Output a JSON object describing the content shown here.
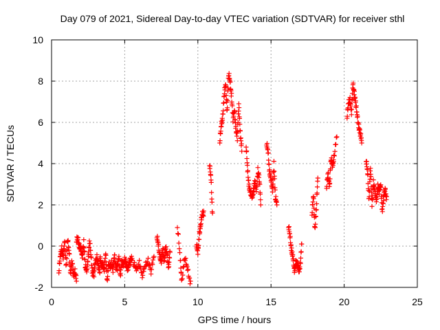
{
  "chart_data": {
    "type": "scatter",
    "title": "Day 079 of 2021, Sidereal Day-to-day VTEC variation (SDTVAR) for receiver sthl",
    "xlabel": "GPS time / hours",
    "ylabel": "SDTVAR / TECUs",
    "xlim": [
      0,
      25
    ],
    "ylim": [
      -2,
      10
    ],
    "xticks": [
      0,
      5,
      10,
      15,
      20,
      25
    ],
    "yticks": [
      -2,
      0,
      2,
      4,
      6,
      8,
      10
    ],
    "grid": true,
    "marker": "+",
    "color": "#ff0000",
    "segments": [
      {
        "x": [
          0.5,
          0.6,
          0.7,
          0.8,
          0.9,
          1.0,
          1.1,
          1.2,
          1.3,
          1.4,
          1.5,
          1.6,
          1.7
        ],
        "y": [
          -1.3,
          -0.5,
          0.0,
          -0.6,
          0.2,
          -0.9,
          0.3,
          -0.4,
          -1.2,
          -0.8,
          -1.5,
          -1.1,
          -1.7
        ]
      },
      {
        "x": [
          1.7,
          1.8,
          1.9,
          2.0,
          2.1,
          2.2,
          2.3,
          2.4,
          2.5,
          2.6,
          2.7,
          2.8,
          2.9,
          3.0,
          3.1,
          3.2,
          3.3
        ],
        "y": [
          0.2,
          0.3,
          0.1,
          -0.2,
          -0.6,
          0.3,
          -1.0,
          -1.3,
          -0.4,
          0.2,
          -0.6,
          -1.2,
          -1.4,
          -0.8,
          -0.4,
          -1.0,
          -1.3
        ]
      },
      {
        "x": [
          3.3,
          3.4,
          3.5,
          3.6,
          3.7,
          3.8,
          3.9,
          4.0,
          4.1,
          4.2,
          4.3,
          4.4,
          4.5,
          4.6,
          4.7,
          4.8,
          4.9,
          5.0,
          5.1,
          5.2,
          5.3,
          5.4,
          5.5
        ],
        "y": [
          -0.6,
          -1.0,
          -0.8,
          -1.2,
          -0.4,
          -1.6,
          -0.9,
          -1.1,
          -0.7,
          -1.2,
          -0.5,
          -0.9,
          -1.1,
          -0.6,
          -1.3,
          -0.8,
          -1.0,
          -0.5,
          -0.9,
          -1.2,
          -0.7,
          -0.8,
          -0.6
        ]
      },
      {
        "x": [
          5.6,
          5.8,
          6.0,
          6.2,
          6.4,
          6.6,
          6.8,
          7.0
        ],
        "y": [
          -0.9,
          -1.2,
          -0.7,
          -1.5,
          -1.0,
          -0.6,
          -1.3,
          -0.5
        ]
      },
      {
        "x": [
          7.2,
          7.3,
          7.4,
          7.5,
          7.6,
          7.7,
          7.8,
          7.9,
          8.0,
          8.1
        ],
        "y": [
          0.4,
          0.0,
          -0.4,
          -0.8,
          -0.2,
          -0.6,
          -0.1,
          -0.5,
          -0.9,
          -0.3
        ]
      },
      {
        "x": [
          8.6,
          8.8,
          8.9,
          9.1,
          9.3,
          9.5
        ],
        "y": [
          0.9,
          -0.7,
          -1.6,
          -0.6,
          -1.2,
          -1.7
        ]
      },
      {
        "x": [
          9.9,
          10.0,
          10.1,
          10.2,
          10.3,
          10.4
        ],
        "y": [
          0.0,
          -0.4,
          0.7,
          1.0,
          1.5,
          1.7
        ]
      },
      {
        "x": [
          10.8,
          10.9,
          11.0
        ],
        "y": [
          3.9,
          3.2,
          1.6
        ]
      },
      {
        "x": [
          11.5,
          11.6,
          11.7,
          11.8,
          11.9,
          12.0,
          12.1,
          12.2,
          12.3,
          12.4,
          12.5,
          12.6,
          12.7,
          12.8,
          12.9,
          13.0
        ],
        "y": [
          5.0,
          5.8,
          6.4,
          7.3,
          7.8,
          6.6,
          8.3,
          7.9,
          7.4,
          6.1,
          6.5,
          5.8,
          5.2,
          6.8,
          5.6,
          4.6
        ]
      },
      {
        "x": [
          13.3,
          13.4,
          13.5,
          13.6,
          13.7,
          13.8,
          13.9,
          14.0,
          14.1,
          14.2,
          14.3
        ],
        "y": [
          4.8,
          3.6,
          3.0,
          2.5,
          2.3,
          2.8,
          3.1,
          2.6,
          3.8,
          3.2,
          2.0
        ]
      },
      {
        "x": [
          14.7,
          14.8,
          14.9,
          15.0,
          15.1,
          15.2,
          15.3,
          15.4
        ],
        "y": [
          4.9,
          4.5,
          3.7,
          3.2,
          2.6,
          4.1,
          2.3,
          2.0
        ]
      },
      {
        "x": [
          16.2,
          16.3,
          16.4,
          16.5,
          16.6,
          16.7,
          16.8,
          16.9,
          17.0,
          17.1
        ],
        "y": [
          0.9,
          0.4,
          -0.1,
          -0.6,
          -1.3,
          -0.7,
          -0.9,
          -1.3,
          -0.8,
          0.1
        ]
      },
      {
        "x": [
          17.8,
          17.9,
          18.0,
          18.1,
          18.2
        ],
        "y": [
          1.5,
          2.4,
          0.9,
          1.8,
          3.3
        ]
      },
      {
        "x": [
          18.8,
          18.9,
          19.0,
          19.1,
          19.2,
          19.3,
          19.5
        ],
        "y": [
          2.8,
          3.5,
          3.0,
          4.2,
          3.8,
          4.4,
          5.3
        ]
      },
      {
        "x": [
          20.2,
          20.3,
          20.4,
          20.5,
          20.6,
          20.7,
          20.8,
          20.9,
          21.0,
          21.1,
          21.2
        ],
        "y": [
          6.2,
          6.9,
          7.2,
          6.4,
          7.8,
          7.5,
          6.8,
          6.2,
          5.9,
          5.4,
          5.0
        ]
      },
      {
        "x": [
          21.5,
          21.6,
          21.7,
          21.8,
          21.9,
          22.0,
          22.1,
          22.2,
          22.3,
          22.4,
          22.5,
          22.6,
          22.7,
          22.8,
          22.9
        ],
        "y": [
          4.1,
          3.5,
          2.3,
          3.8,
          1.9,
          3.2,
          2.6,
          2.1,
          3.0,
          2.6,
          2.9,
          1.8,
          2.3,
          2.7,
          2.4
        ]
      }
    ]
  }
}
